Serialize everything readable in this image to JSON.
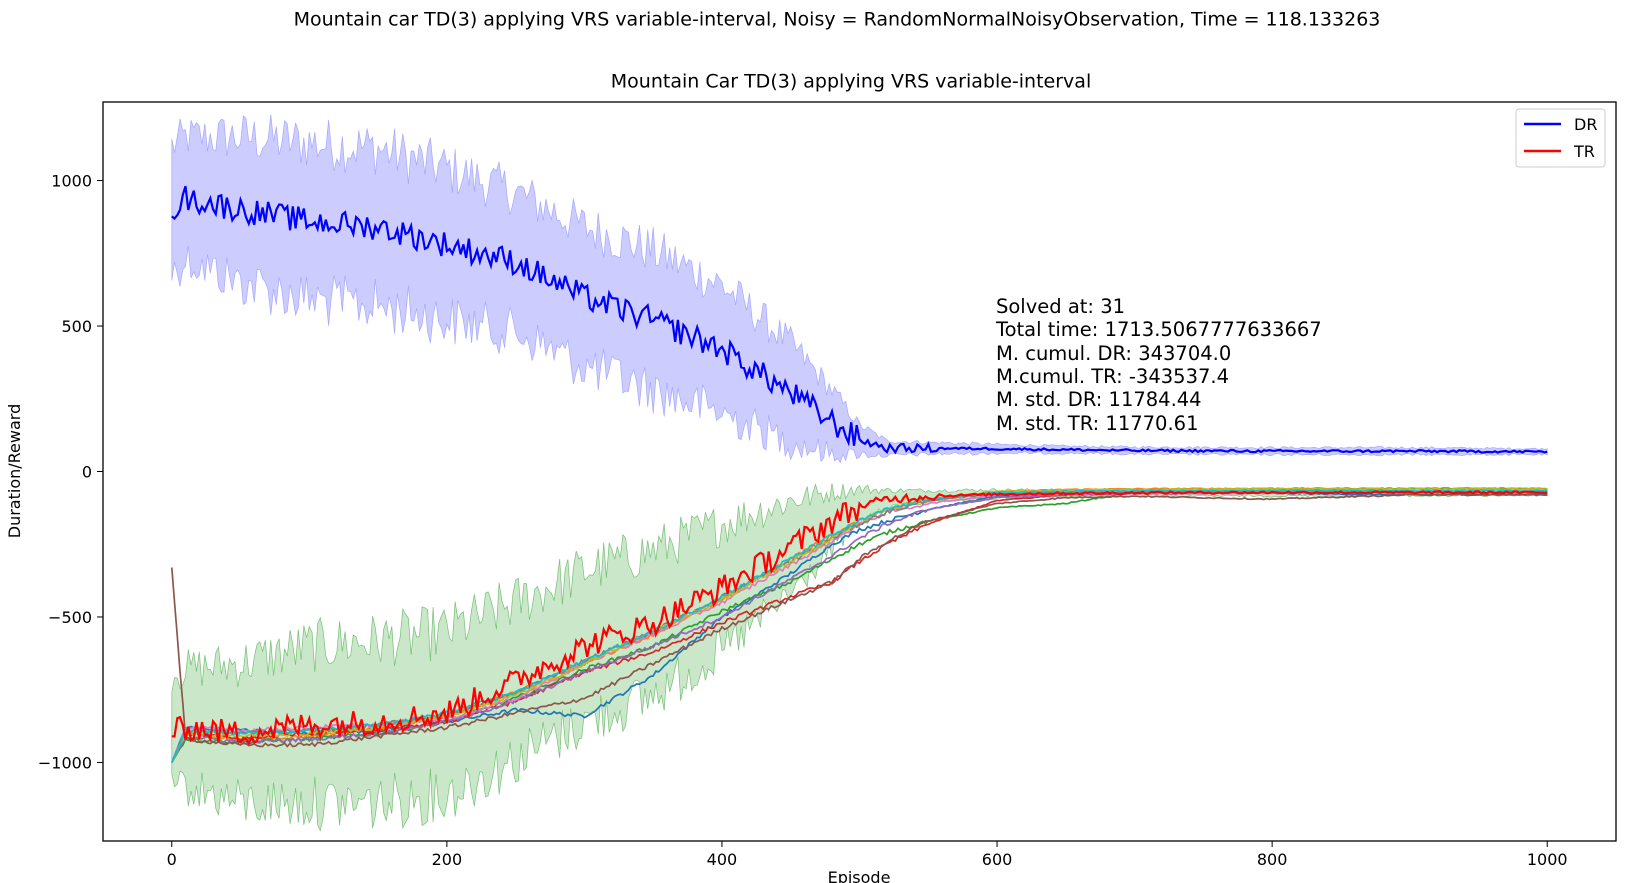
{
  "figure": {
    "suptitle": "Mountain car TD(3) applying VRS variable-interval, Noisy = RandomNormalNoisyObservation, Time = 118.133263"
  },
  "chart_data": {
    "type": "line",
    "title": "Mountain Car TD(3) applying VRS variable-interval",
    "xlabel": "Episode",
    "ylabel": "Duration/Reward",
    "xlim": [
      -50,
      1050
    ],
    "ylim": [
      -1270,
      1270
    ],
    "xticks": [
      0,
      200,
      400,
      600,
      800,
      1000
    ],
    "yticks": [
      1000,
      500,
      0,
      -500,
      -1000
    ],
    "xtick_labels": [
      "0",
      "200",
      "400",
      "600",
      "800",
      "1000"
    ],
    "ytick_labels": [
      "1000",
      "500",
      "0",
      "−500",
      "−1000"
    ],
    "grid": false,
    "legend": {
      "position": "top-right",
      "entries": [
        {
          "label": "DR",
          "color": "#0000ff"
        },
        {
          "label": "TR",
          "color": "#ff0000"
        }
      ]
    },
    "annotation": [
      "Solved at: 31",
      "Total time: 1713.5067777633667",
      "M. cumul. DR: 343704.0",
      "M.cumul. TR: -343537.4",
      "M. std. DR: 11784.44",
      "M. std. TR: 11770.61"
    ],
    "x": [
      0,
      10,
      50,
      100,
      150,
      200,
      250,
      300,
      350,
      400,
      450,
      480,
      500,
      520,
      550,
      600,
      650,
      700,
      800,
      900,
      1000
    ],
    "series": [
      {
        "name": "DR",
        "color": "#0000ff",
        "lw": 2.2,
        "values": [
          900,
          940,
          900,
          860,
          840,
          780,
          720,
          600,
          520,
          420,
          270,
          170,
          110,
          80,
          80,
          78,
          75,
          72,
          70,
          70,
          68
        ],
        "band": [
          220,
          210,
          250,
          270,
          270,
          260,
          240,
          240,
          240,
          220,
          170,
          110,
          50,
          25,
          20,
          15,
          12,
          12,
          12,
          12,
          10
        ]
      },
      {
        "name": "TR",
        "color": "#ff0000",
        "lw": 2.2,
        "values": [
          -900,
          -880,
          -900,
          -870,
          -860,
          -830,
          -720,
          -600,
          -520,
          -400,
          -260,
          -170,
          -120,
          -95,
          -85,
          -78,
          -75,
          -73,
          -72,
          -72,
          -72
        ],
        "band": [
          210,
          200,
          240,
          270,
          280,
          280,
          270,
          260,
          250,
          220,
          160,
          100,
          60,
          30,
          20,
          15,
          12,
          12,
          12,
          12,
          10
        ]
      }
    ],
    "bands": [
      {
        "series": "DR",
        "fill": "#8080ff",
        "opacity": 0.4
      },
      {
        "series": "TR",
        "fill": "#2ca02c",
        "opacity": 0.25
      }
    ],
    "extra_series": [
      {
        "color": "#1f77b4",
        "values": [
          -1000,
          -880,
          -890,
          -900,
          -890,
          -860,
          -820,
          -840,
          -700,
          -500,
          -350,
          -250,
          -200,
          -170,
          -130,
          -85,
          -75,
          -74,
          -75,
          -80,
          -80
        ]
      },
      {
        "color": "#ff7f0e",
        "values": [
          -1000,
          -900,
          -920,
          -910,
          -880,
          -840,
          -760,
          -660,
          -560,
          -440,
          -300,
          -220,
          -170,
          -130,
          -100,
          -70,
          -62,
          -60,
          -58,
          -58,
          -58
        ]
      },
      {
        "color": "#2ca02c",
        "values": [
          -1000,
          -920,
          -930,
          -920,
          -900,
          -860,
          -780,
          -680,
          -600,
          -480,
          -380,
          -300,
          -250,
          -210,
          -170,
          -125,
          -110,
          -70,
          -65,
          -60,
          -60
        ]
      },
      {
        "color": "#d62728",
        "values": [
          -1000,
          -900,
          -920,
          -900,
          -890,
          -860,
          -790,
          -690,
          -620,
          -520,
          -430,
          -380,
          -310,
          -250,
          -180,
          -100,
          -80,
          -75,
          -72,
          -72,
          -72
        ]
      },
      {
        "color": "#9467bd",
        "values": [
          -1000,
          -910,
          -930,
          -920,
          -900,
          -860,
          -790,
          -690,
          -600,
          -500,
          -370,
          -290,
          -230,
          -180,
          -130,
          -90,
          -80,
          -76,
          -74,
          -74,
          -74
        ]
      },
      {
        "color": "#8c564b",
        "values": [
          -330,
          -920,
          -940,
          -940,
          -910,
          -880,
          -830,
          -780,
          -660,
          -540,
          -440,
          -380,
          -300,
          -240,
          -170,
          -110,
          -90,
          -85,
          -95,
          -80,
          -78
        ]
      },
      {
        "color": "#e377c2",
        "values": [
          -1000,
          -880,
          -890,
          -880,
          -870,
          -850,
          -780,
          -660,
          -560,
          -450,
          -320,
          -240,
          -180,
          -140,
          -110,
          -80,
          -76,
          -74,
          -73,
          -72,
          -72
        ]
      },
      {
        "color": "#7f7f7f",
        "values": [
          -1000,
          -890,
          -900,
          -890,
          -870,
          -840,
          -760,
          -650,
          -550,
          -430,
          -310,
          -230,
          -180,
          -140,
          -100,
          -75,
          -72,
          -71,
          -70,
          -70,
          -70
        ]
      },
      {
        "color": "#bcbd22",
        "values": [
          -1000,
          -900,
          -910,
          -900,
          -880,
          -840,
          -770,
          -660,
          -550,
          -440,
          -310,
          -230,
          -170,
          -130,
          -95,
          -68,
          -64,
          -62,
          -60,
          -60,
          -60
        ]
      },
      {
        "color": "#17becf",
        "values": [
          -1000,
          -890,
          -900,
          -890,
          -870,
          -830,
          -760,
          -650,
          -550,
          -430,
          -300,
          -220,
          -170,
          -130,
          -95,
          -72,
          -68,
          -66,
          -66,
          -66,
          -66
        ]
      }
    ]
  }
}
